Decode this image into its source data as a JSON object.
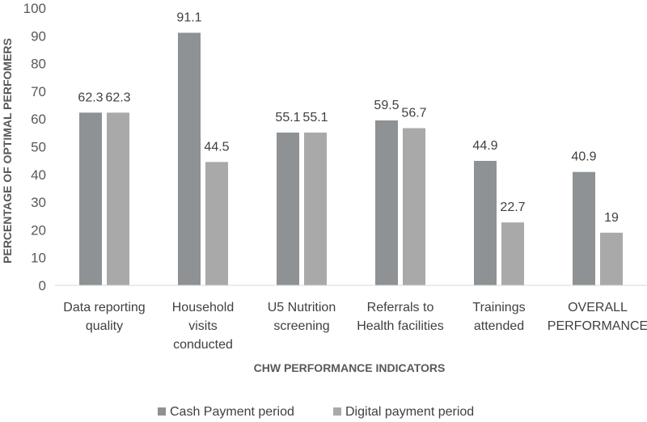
{
  "chart_data": {
    "type": "bar",
    "title": "",
    "xlabel": "CHW PERFORMANCE INDICATORS",
    "ylabel": "PERCENTAGE OF OPTIMAL PERFOMERS",
    "ylim": [
      0,
      100
    ],
    "yticks": [
      "0",
      "10",
      "20",
      "30",
      "40",
      "50",
      "60",
      "70",
      "80",
      "90",
      "100"
    ],
    "categories": [
      [
        "Data reporting",
        "quality"
      ],
      [
        "Household",
        "visits",
        "conducted"
      ],
      [
        "U5 Nutrition",
        "screening"
      ],
      [
        "Referrals to",
        "Health facilities"
      ],
      [
        "Trainings",
        "attended"
      ],
      [
        "OVERALL",
        "PERFORMANCE"
      ]
    ],
    "series": [
      {
        "name": "Cash Payment period",
        "color": "#8e9294",
        "values": [
          62.3,
          91.1,
          55.1,
          59.5,
          44.9,
          40.9
        ],
        "labels": [
          "62.3",
          "91.1",
          "55.1",
          "59.5",
          "44.9",
          "40.9"
        ]
      },
      {
        "name": "Digital payment period",
        "color": "#a9a9a9",
        "values": [
          62.3,
          44.5,
          55.1,
          56.7,
          22.7,
          19
        ],
        "labels": [
          "62.3",
          "44.5",
          "55.1",
          "56.7",
          "22.7",
          "19"
        ]
      }
    ],
    "grid": false,
    "legend": "bottom"
  }
}
